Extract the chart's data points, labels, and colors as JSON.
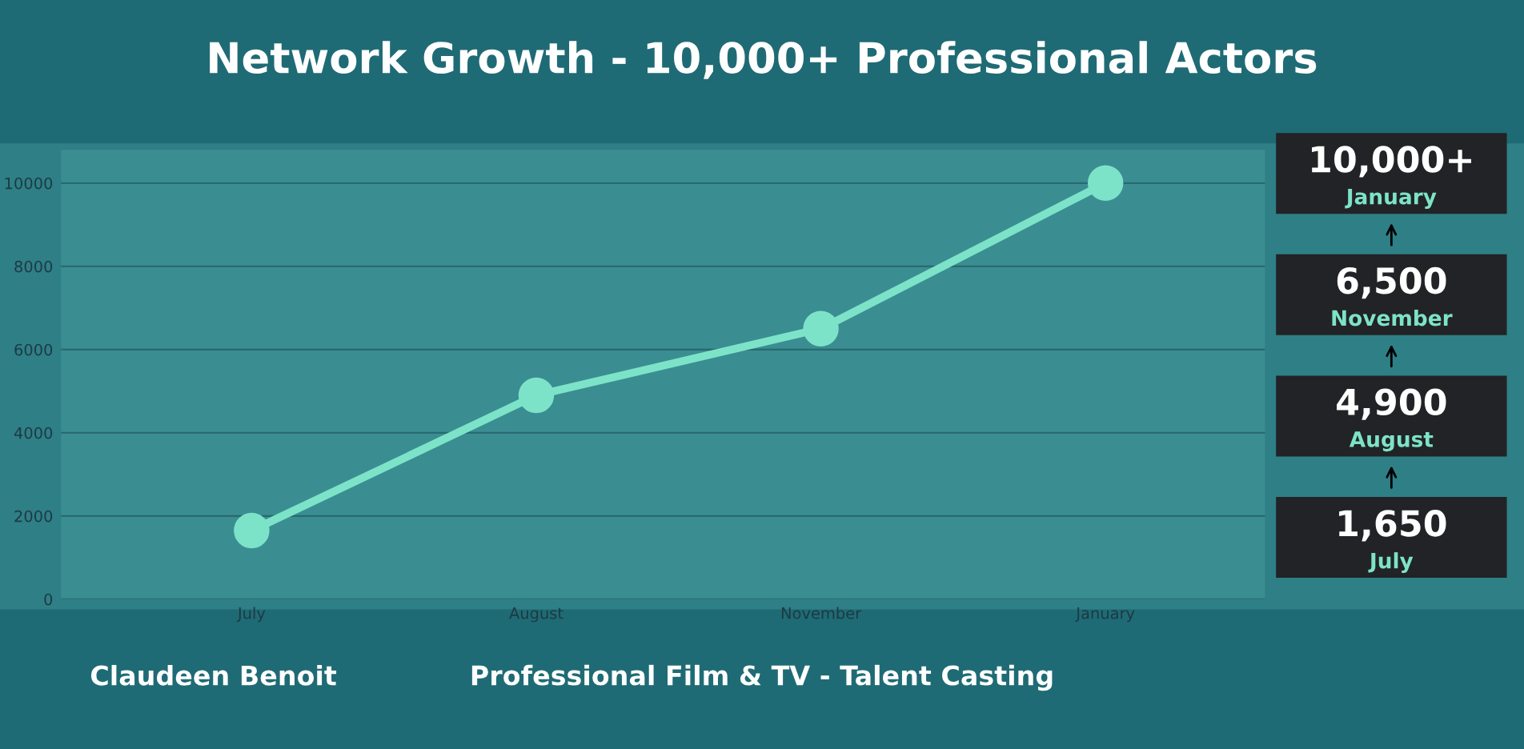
{
  "chart_data": {
    "type": "line",
    "title": "Network Growth - 10,000+ Professional Actors",
    "categories": [
      "July",
      "August",
      "November",
      "January"
    ],
    "series": [
      {
        "color": "#7de3c8",
        "values": [
          1650,
          4900,
          6500,
          10000
        ]
      }
    ],
    "ylim": [
      0,
      10800
    ],
    "yticks": [
      0,
      2000,
      4000,
      6000,
      8000,
      10000
    ],
    "grid": "y",
    "marker": "circle",
    "line_style": "solid",
    "annotations": [
      "Claudeen Benoit",
      "Professional Film & TV - Talent Casting",
      "1,650",
      "4,900",
      "6,500",
      "10,000+"
    ]
  }
}
